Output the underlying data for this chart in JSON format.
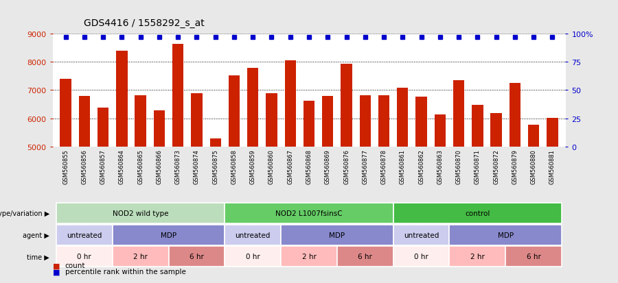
{
  "title": "GDS4416 / 1558292_s_at",
  "samples": [
    "GSM560855",
    "GSM560856",
    "GSM560857",
    "GSM560864",
    "GSM560865",
    "GSM560866",
    "GSM560873",
    "GSM560874",
    "GSM560875",
    "GSM560858",
    "GSM560859",
    "GSM560860",
    "GSM560867",
    "GSM560868",
    "GSM560869",
    "GSM560876",
    "GSM560877",
    "GSM560878",
    "GSM560861",
    "GSM560862",
    "GSM560863",
    "GSM560870",
    "GSM560871",
    "GSM560872",
    "GSM560879",
    "GSM560880",
    "GSM560881"
  ],
  "values": [
    7400,
    6800,
    6380,
    8380,
    6820,
    6280,
    8640,
    6880,
    5300,
    7520,
    7780,
    6900,
    8040,
    6620,
    6800,
    7940,
    6820,
    6820,
    7080,
    6780,
    6140,
    7340,
    6480,
    6200,
    7250,
    5790,
    6010
  ],
  "percentile_values": [
    97,
    97,
    97,
    97,
    97,
    97,
    97,
    97,
    97,
    97,
    97,
    97,
    97,
    97,
    97,
    97,
    97,
    97,
    97,
    97,
    97,
    97,
    97,
    97,
    97,
    97,
    97
  ],
  "bar_color": "#cc2200",
  "dot_color": "#0000cc",
  "ylim_left": [
    5000,
    9000
  ],
  "yticks_left": [
    5000,
    6000,
    7000,
    8000,
    9000
  ],
  "ylim_right": [
    0,
    100
  ],
  "yticks_right": [
    0,
    25,
    50,
    75,
    100
  ],
  "yticklabels_right": [
    "0",
    "25",
    "50",
    "75",
    "100%"
  ],
  "bg_color": "#e8e8e8",
  "plot_bg_color": "#ffffff",
  "annotation_rows": [
    {
      "label": "genotype/variation",
      "groups": [
        {
          "text": "NOD2 wild type",
          "span": [
            0,
            9
          ],
          "color": "#bbddbb"
        },
        {
          "text": "NOD2 L1007fsinsC",
          "span": [
            9,
            18
          ],
          "color": "#66cc66"
        },
        {
          "text": "control",
          "span": [
            18,
            27
          ],
          "color": "#44bb44"
        }
      ]
    },
    {
      "label": "agent",
      "groups": [
        {
          "text": "untreated",
          "span": [
            0,
            3
          ],
          "color": "#ccccee"
        },
        {
          "text": "MDP",
          "span": [
            3,
            9
          ],
          "color": "#8888cc"
        },
        {
          "text": "untreated",
          "span": [
            9,
            12
          ],
          "color": "#ccccee"
        },
        {
          "text": "MDP",
          "span": [
            12,
            18
          ],
          "color": "#8888cc"
        },
        {
          "text": "untreated",
          "span": [
            18,
            21
          ],
          "color": "#ccccee"
        },
        {
          "text": "MDP",
          "span": [
            21,
            27
          ],
          "color": "#8888cc"
        }
      ]
    },
    {
      "label": "time",
      "groups": [
        {
          "text": "0 hr",
          "span": [
            0,
            3
          ],
          "color": "#ffeeee"
        },
        {
          "text": "2 hr",
          "span": [
            3,
            6
          ],
          "color": "#ffbbbb"
        },
        {
          "text": "6 hr",
          "span": [
            6,
            9
          ],
          "color": "#dd8888"
        },
        {
          "text": "0 hr",
          "span": [
            9,
            12
          ],
          "color": "#ffeeee"
        },
        {
          "text": "2 hr",
          "span": [
            12,
            15
          ],
          "color": "#ffbbbb"
        },
        {
          "text": "6 hr",
          "span": [
            15,
            18
          ],
          "color": "#dd8888"
        },
        {
          "text": "0 hr",
          "span": [
            18,
            21
          ],
          "color": "#ffeeee"
        },
        {
          "text": "2 hr",
          "span": [
            21,
            24
          ],
          "color": "#ffbbbb"
        },
        {
          "text": "6 hr",
          "span": [
            24,
            27
          ],
          "color": "#dd8888"
        }
      ]
    }
  ],
  "legend": [
    {
      "label": "count",
      "color": "#cc2200"
    },
    {
      "label": "percentile rank within the sample",
      "color": "#0000cc"
    }
  ]
}
